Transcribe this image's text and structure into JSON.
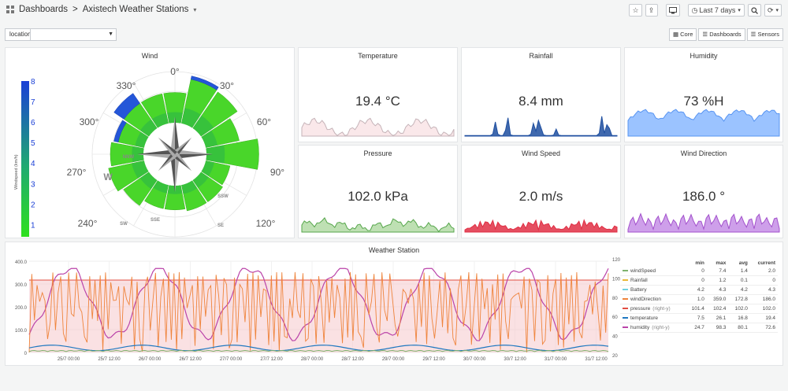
{
  "nav": {
    "root": "Dashboards",
    "separator": ">",
    "title": "Axistech Weather Stations",
    "title_caret": "▾",
    "time_range": "Last 7 days",
    "time_caret": "▾",
    "refresh_caret": "▾"
  },
  "variable": {
    "label": "location",
    "value": ""
  },
  "links": [
    {
      "label": "Core",
      "icon": "dashboard-icon"
    },
    {
      "label": "Dashboards",
      "icon": "list-icon"
    },
    {
      "label": "Sensors",
      "icon": "list-icon"
    }
  ],
  "wind": {
    "title": "Wind",
    "scale_title": "Windspeed (km/h)",
    "scale_ticks": [
      "8",
      "7",
      "6",
      "5",
      "4",
      "3",
      "2",
      "1"
    ],
    "angles": [
      {
        "label": "0°"
      },
      {
        "label": "30°"
      },
      {
        "label": "60°"
      },
      {
        "label": "90°"
      },
      {
        "label": "120°"
      },
      {
        "label": "240°"
      },
      {
        "label": "270°"
      },
      {
        "label": "300°"
      },
      {
        "label": "330°"
      }
    ],
    "directions": [
      "NNW",
      "W",
      "SW",
      "SSW",
      "SE",
      "SSE"
    ],
    "petals": [
      {
        "dir": 0,
        "green": 0.55,
        "blue": 0.0
      },
      {
        "dir": 22.5,
        "green": 0.82,
        "blue": 0.06
      },
      {
        "dir": 45,
        "green": 0.8,
        "blue": 0.0
      },
      {
        "dir": 67.5,
        "green": 0.62,
        "blue": 0.0
      },
      {
        "dir": 90,
        "green": 0.95,
        "blue": 0.0
      },
      {
        "dir": 112.5,
        "green": 0.45,
        "blue": 0.0
      },
      {
        "dir": 135,
        "green": 0.48,
        "blue": 0.0
      },
      {
        "dir": 157.5,
        "green": 0.48,
        "blue": 0.0
      },
      {
        "dir": 180,
        "green": 0.44,
        "blue": 0.0
      },
      {
        "dir": 202.5,
        "green": 0.44,
        "blue": 0.0
      },
      {
        "dir": 225,
        "green": 0.56,
        "blue": 0.0
      },
      {
        "dir": 247.5,
        "green": 0.66,
        "blue": 0.0
      },
      {
        "dir": 270,
        "green": 0.6,
        "blue": 0.0
      },
      {
        "dir": 292.5,
        "green": 0.48,
        "blue": 0.08
      },
      {
        "dir": 315,
        "green": 0.55,
        "blue": 0.22
      },
      {
        "dir": 337.5,
        "green": 0.55,
        "blue": 0.0
      }
    ]
  },
  "stats": {
    "temperature": {
      "title": "Temperature",
      "value": "19.4 °C",
      "color": "#c5b3b8",
      "fill": "#fae6e8"
    },
    "rainfall": {
      "title": "Rainfall",
      "value": "8.4 mm",
      "color": "#1f4fa0",
      "fill": "#1f4fa0"
    },
    "humidity": {
      "title": "Humidity",
      "value": "73 %H",
      "color": "#5794f2",
      "fill": "#8ab8ff"
    },
    "pressure": {
      "title": "Pressure",
      "value": "102.0 kPa",
      "color": "#56a64b",
      "fill": "#b3dba6"
    },
    "windspeed": {
      "title": "Wind Speed",
      "value": "2.0 m/s",
      "color": "#e02f44",
      "fill": "#e02f44"
    },
    "winddir": {
      "title": "Wind Direction",
      "value": "186.0 °",
      "color": "#a352cc",
      "fill": "#c58ee6"
    }
  },
  "station": {
    "title": "Weather Station",
    "y_left_ticks": [
      "400.0",
      "300.0",
      "200.0",
      "100.0",
      "0"
    ],
    "y_right_ticks": [
      "120",
      "100",
      "80",
      "60",
      "40",
      "20"
    ],
    "x_ticks": [
      "25/7 00:00",
      "25/7 12:00",
      "26/7 00:00",
      "26/7 12:00",
      "27/7 00:00",
      "27/7 12:00",
      "28/7 00:00",
      "28/7 12:00",
      "29/7 00:00",
      "29/7 12:00",
      "30/7 00:00",
      "30/7 12:00",
      "31/7 00:00",
      "31/7 12:00"
    ],
    "legend_headers": [
      "min",
      "max",
      "avg",
      "current"
    ],
    "legend": [
      {
        "name": "windSpeed",
        "color": "#7eb26d",
        "min": "0",
        "max": "7.4",
        "avg": "1.4",
        "current": "2.0"
      },
      {
        "name": "Rainfall",
        "color": "#eab839",
        "min": "0",
        "max": "1.2",
        "avg": "0.1",
        "current": "0"
      },
      {
        "name": "Battery",
        "color": "#6ed0e0",
        "min": "4.2",
        "max": "4.3",
        "avg": "4.2",
        "current": "4.3"
      },
      {
        "name": "windDirection",
        "color": "#ef843c",
        "min": "1.0",
        "max": "359.0",
        "avg": "172.8",
        "current": "186.0"
      },
      {
        "name": "pressure",
        "axis": "(right-y)",
        "color": "#e24d42",
        "min": "101.4",
        "max": "102.4",
        "avg": "102.0",
        "current": "102.0"
      },
      {
        "name": "temperature",
        "color": "#1f78c1",
        "min": "7.5",
        "max": "26.1",
        "avg": "16.8",
        "current": "19.4"
      },
      {
        "name": "humidity",
        "axis": "(right-y)",
        "color": "#ba43a9",
        "min": "24.7",
        "max": "98.3",
        "avg": "80.1",
        "current": "72.6"
      }
    ]
  }
}
